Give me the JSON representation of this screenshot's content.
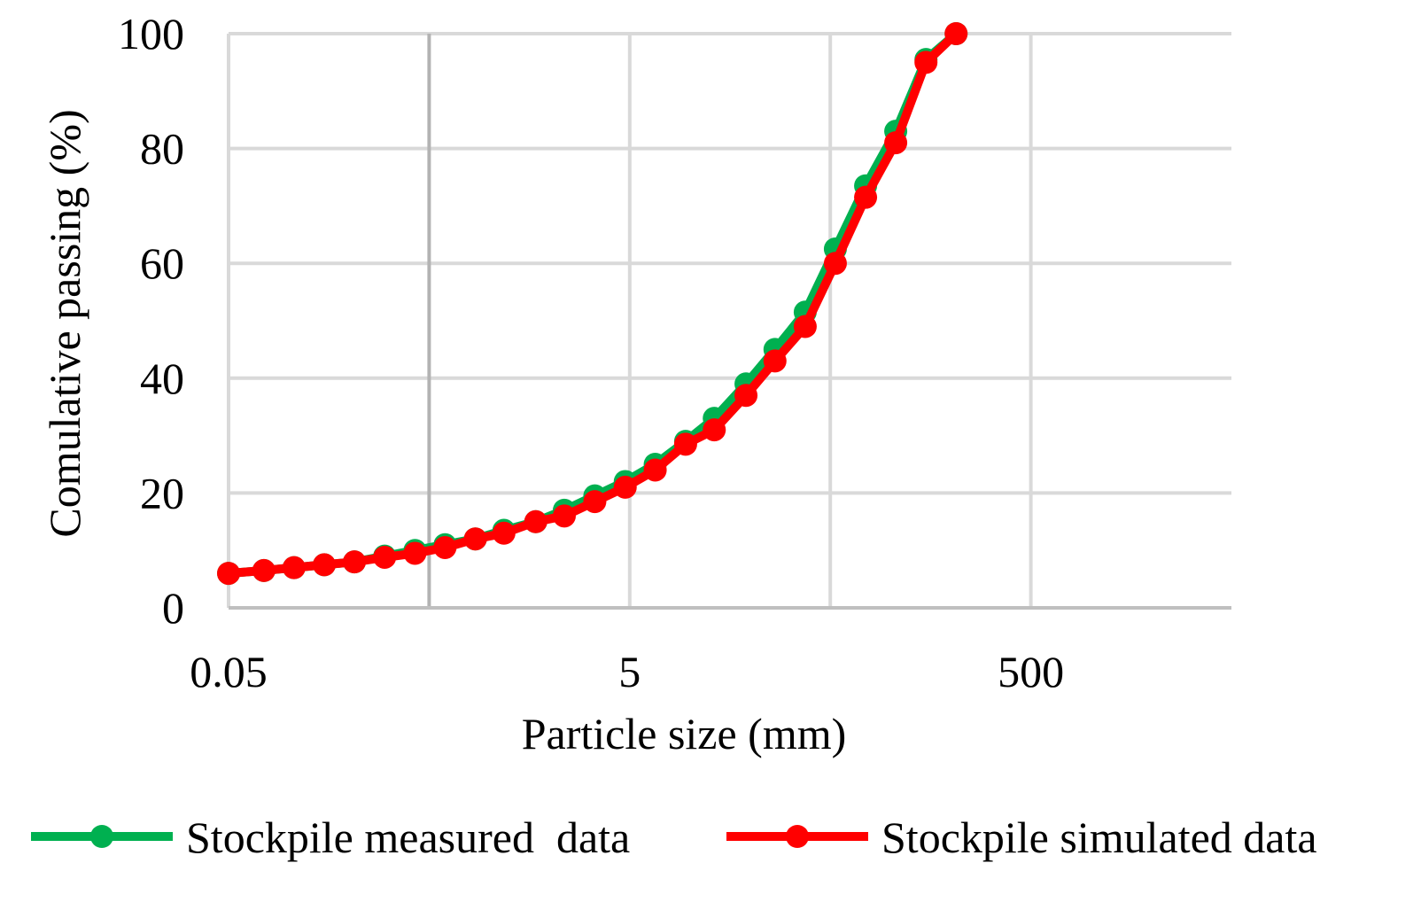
{
  "chart_data": {
    "type": "line",
    "x_scale": "log",
    "xlabel": "Particle size (mm)",
    "ylabel": "Comulative passing (%)",
    "xlim": [
      0.05,
      5000
    ],
    "ylim": [
      0,
      100
    ],
    "x_ticks": [
      0.05,
      5,
      500
    ],
    "x_tick_labels": [
      "0.05",
      "5",
      "500"
    ],
    "x_gridlines": [
      0.05,
      0.5,
      5,
      50,
      500
    ],
    "y_ticks": [
      0,
      20,
      40,
      60,
      80,
      100
    ],
    "y_tick_labels": [
      "0",
      "20",
      "40",
      "60",
      "80",
      "100"
    ],
    "grid": true,
    "legend_position": "bottom",
    "series": [
      {
        "name": "Stockpile measured  data",
        "color": "#00b050",
        "x": [
          0.05,
          0.075,
          0.106,
          0.15,
          0.212,
          0.3,
          0.425,
          0.6,
          0.85,
          1.18,
          1.7,
          2.36,
          3.35,
          4.75,
          6.7,
          9.5,
          13.2,
          19,
          26.5,
          37.5,
          53,
          75,
          106,
          150,
          212
        ],
        "values": [
          6,
          6.5,
          7,
          7.5,
          8,
          9,
          10,
          11,
          12,
          13.5,
          15,
          17,
          19.5,
          22,
          25,
          29,
          33,
          39,
          45,
          51.5,
          62.5,
          73.5,
          83,
          95.5,
          100
        ]
      },
      {
        "name": "Stockpile simulated data",
        "color": "#ff0000",
        "x": [
          0.05,
          0.075,
          0.106,
          0.15,
          0.212,
          0.3,
          0.425,
          0.6,
          0.85,
          1.18,
          1.7,
          2.36,
          3.35,
          4.75,
          6.7,
          9.5,
          13.2,
          19,
          26.5,
          37.5,
          53,
          75,
          106,
          150,
          212
        ],
        "values": [
          6,
          6.5,
          7,
          7.5,
          8,
          8.8,
          9.5,
          10.5,
          12,
          13,
          15,
          16,
          18.5,
          21,
          24,
          28.5,
          31,
          37,
          43,
          49,
          60,
          71.5,
          81,
          95,
          100
        ]
      }
    ]
  }
}
